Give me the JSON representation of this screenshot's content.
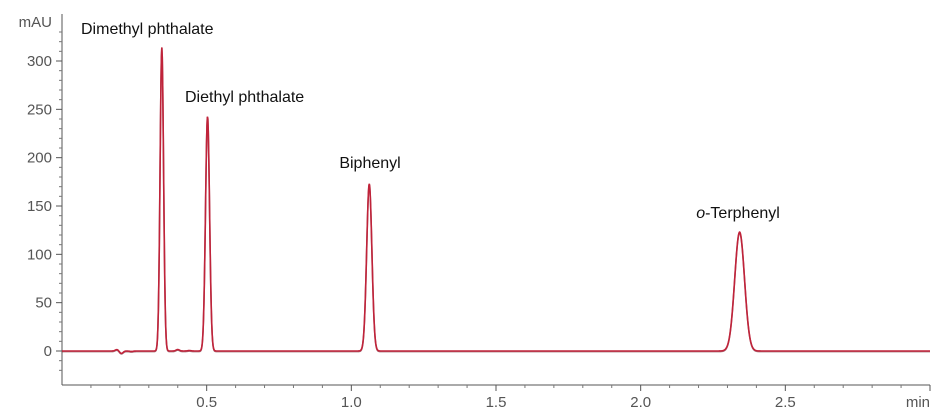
{
  "chart_data": {
    "type": "line",
    "title": "",
    "xlabel": "min",
    "ylabel": "mAU",
    "xlim": [
      0.0,
      3.0
    ],
    "ylim": [
      -30,
      335
    ],
    "x_ticks": [
      0.5,
      1.0,
      1.5,
      2.0,
      2.5
    ],
    "x_tick_labels": [
      "0.5",
      "1.0",
      "1.5",
      "2.0",
      "2.5"
    ],
    "y_ticks": [
      0,
      50,
      100,
      150,
      200,
      250,
      300
    ],
    "y_tick_labels": [
      "0",
      "50",
      "100",
      "150",
      "200",
      "250",
      "300"
    ],
    "grid": false,
    "series": [
      {
        "color": "#c0233a",
        "peaks": [
          {
            "label": "Dimethyl phthalate",
            "label_parts": [
              {
                "text": "Dimethyl phthalate",
                "italic": false
              }
            ],
            "rt": 0.345,
            "height": 314,
            "width": 0.006
          },
          {
            "label": "Diethyl phthalate",
            "label_parts": [
              {
                "text": "Diethyl phthalate",
                "italic": false
              }
            ],
            "rt": 0.503,
            "height": 243,
            "width": 0.007
          },
          {
            "label": "Biphenyl",
            "label_parts": [
              {
                "text": "Biphenyl",
                "italic": false
              }
            ],
            "rt": 1.062,
            "height": 173,
            "width": 0.009
          },
          {
            "label": "o-Terphenyl",
            "label_parts": [
              {
                "text": "o",
                "italic": true
              },
              {
                "text": "-Terphenyl",
                "italic": false
              }
            ],
            "rt": 2.342,
            "height": 123,
            "width": 0.017
          }
        ],
        "baseline_features": [
          {
            "x": 0.19,
            "y": 1.5
          },
          {
            "x": 0.205,
            "y": -2.5
          },
          {
            "x": 0.24,
            "y": -0.5
          },
          {
            "x": 0.4,
            "y": 1.5
          },
          {
            "x": 0.44,
            "y": 0.5
          }
        ]
      }
    ]
  }
}
